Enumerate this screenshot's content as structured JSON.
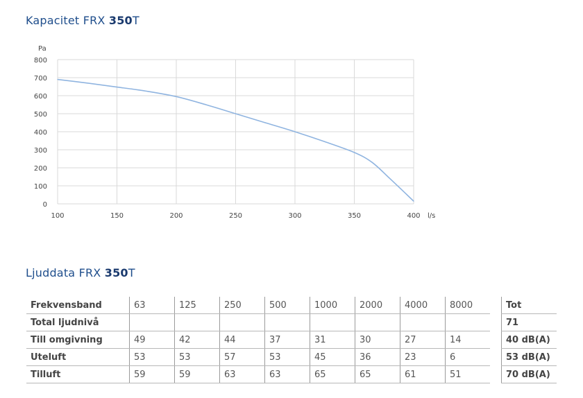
{
  "capacity_heading": {
    "prefix": "Kapacitet FRX ",
    "model_bold": "350",
    "suffix": "T"
  },
  "sound_heading": {
    "prefix": "Ljuddata FRX ",
    "model_bold": "350",
    "suffix": "T"
  },
  "chart_data": {
    "type": "line",
    "title": "Kapacitet FRX 350T",
    "xlabel": "l/s",
    "ylabel": "Pa",
    "xlim": [
      100,
      400
    ],
    "ylim": [
      0,
      800
    ],
    "xticks": [
      100,
      150,
      200,
      250,
      300,
      350,
      400
    ],
    "yticks": [
      0,
      100,
      200,
      300,
      400,
      500,
      600,
      700,
      800
    ],
    "grid": true,
    "series": [
      {
        "color": "#8fb4e0",
        "x": [
          100,
          125,
          150,
          175,
          200,
          225,
          250,
          275,
          300,
          325,
          350,
          365,
          380,
          400
        ],
        "y": [
          690,
          670,
          648,
          625,
          595,
          550,
          500,
          450,
          400,
          345,
          285,
          230,
          140,
          15
        ]
      }
    ]
  },
  "sound_table": {
    "row_labels": [
      "Frekvensband",
      "Total ljudnivå",
      "Till omgivning",
      "Uteluft",
      "Tilluft"
    ],
    "bands": [
      "63",
      "125",
      "250",
      "500",
      "1000",
      "2000",
      "4000",
      "8000"
    ],
    "rows": [
      [
        "",
        "",
        "",
        "",
        "",
        "",
        "",
        ""
      ],
      [
        "49",
        "42",
        "44",
        "37",
        "31",
        "30",
        "27",
        "14"
      ],
      [
        "53",
        "53",
        "57",
        "53",
        "45",
        "36",
        "23",
        "6"
      ],
      [
        "59",
        "59",
        "63",
        "63",
        "65",
        "65",
        "61",
        "51"
      ]
    ],
    "tot_header": "Tot",
    "tot_values": [
      "71",
      "40 dB(A)",
      "53 dB(A)",
      "70 dB(A)"
    ]
  }
}
